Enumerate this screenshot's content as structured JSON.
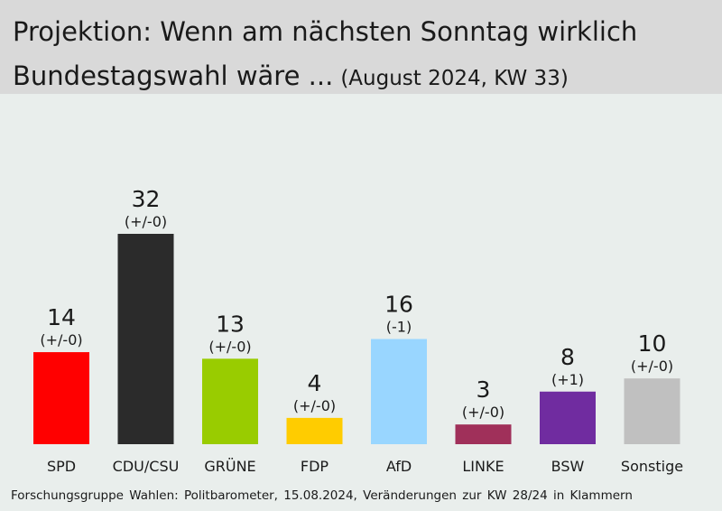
{
  "title": {
    "line1": "Projektion: Wenn am nächsten Sonntag wirklich",
    "line2": "Bundestagswahl wäre ...",
    "subtitle": "(August 2024, KW 33)"
  },
  "chart_data": {
    "type": "bar",
    "categories": [
      "SPD",
      "CDU/CSU",
      "GRÜNE",
      "FDP",
      "AfD",
      "LINKE",
      "BSW",
      "Sonstige"
    ],
    "values": [
      14,
      32,
      13,
      4,
      16,
      3,
      8,
      10
    ],
    "changes": [
      "(+/-0)",
      "(+/-0)",
      "(+/-0)",
      "(+/-0)",
      "(-1)",
      "(+/-0)",
      "(+1)",
      "(+/-0)"
    ],
    "colors": [
      "#ff0000",
      "#2b2b2b",
      "#99cc00",
      "#ffcc00",
      "#99d6ff",
      "#a0305a",
      "#702ca0",
      "#c0c0c0"
    ],
    "ylim": [
      0,
      32
    ],
    "grid": false,
    "legend": "none"
  },
  "footer": "Forschungsgruppe Wahlen: Politbarometer, 15.08.2024, Veränderungen zur KW 28/24 in Klammern"
}
